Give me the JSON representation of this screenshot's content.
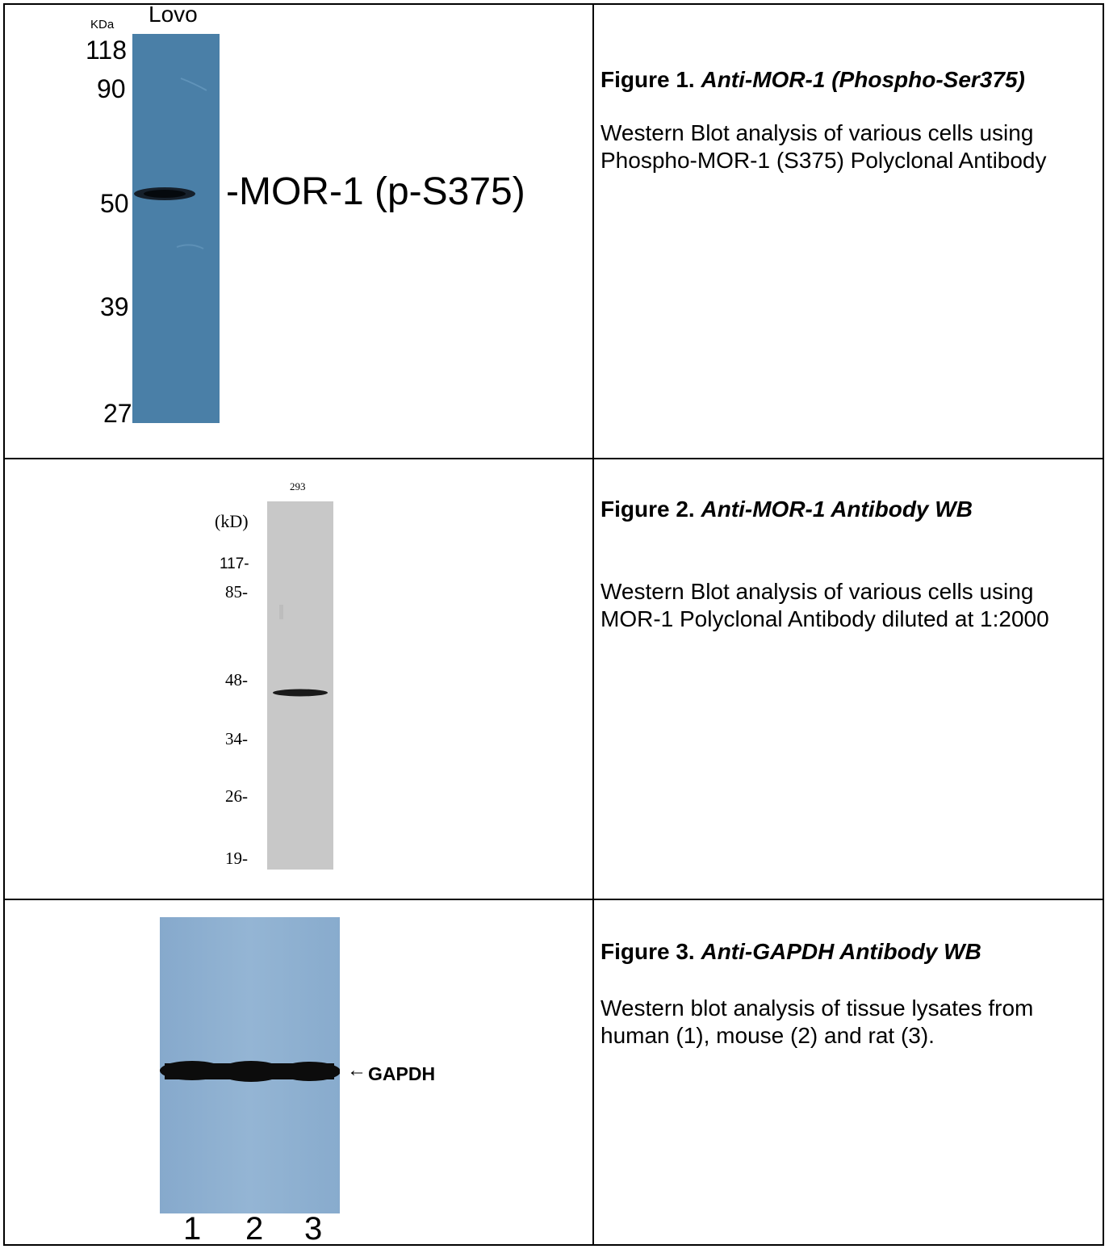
{
  "figures": [
    {
      "title_prefix": "Figure 1.",
      "title_name": "Anti-MOR-1 (Phospho-Ser375)",
      "description": "Western Blot analysis of various cells using Phospho-MOR-1 (S375) Polyclonal Antibody",
      "blot": {
        "unit": "KDa",
        "lane_labels": [
          "Lovo"
        ],
        "markers": [
          "118",
          "90",
          "50",
          "39",
          "27"
        ],
        "band_label": "-MOR-1 (p-S375)",
        "membrane_color": "#4a7fa7"
      }
    },
    {
      "title_prefix": "Figure 2.",
      "title_name": "Anti-MOR-1 Antibody WB",
      "description": "Western Blot analysis of various cells using MOR-1 Polyclonal Antibody diluted at 1:2000",
      "blot": {
        "unit": "(kD)",
        "lane_labels": [
          "293"
        ],
        "markers": [
          "117-",
          "85-",
          "48-",
          "34-",
          "26-",
          "19-"
        ],
        "membrane_color": "#c8c8c8"
      }
    },
    {
      "title_prefix": "Figure 3.",
      "title_name": "Anti-GAPDH Antibody WB",
      "description": "Western blot analysis of tissue lysates from human (1), mouse (2) and rat (3).",
      "blot": {
        "lane_labels": [
          "1",
          "2",
          "3"
        ],
        "band_label": "GAPDH",
        "arrow": "←",
        "membrane_color": "#8fb0d0"
      }
    }
  ]
}
